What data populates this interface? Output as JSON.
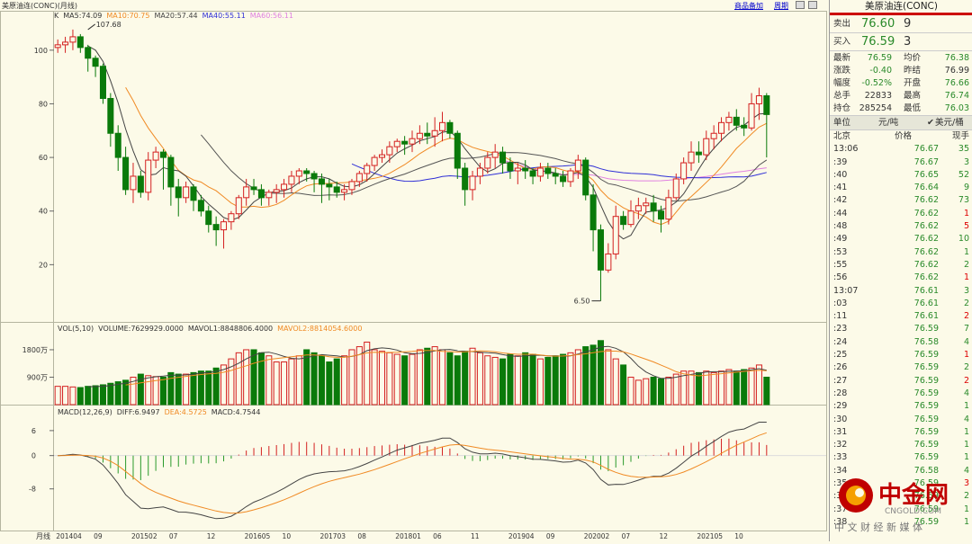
{
  "header": {
    "title": "美原油连(CONC)(月线)",
    "link_add": "商品备加",
    "link_period": "周期"
  },
  "legends": {
    "ma": [
      {
        "label": "K",
        "color": "#333333"
      },
      {
        "label": "MA5:74.09",
        "color": "#333333"
      },
      {
        "label": "MA10:70.75",
        "color": "#f08a24"
      },
      {
        "label": "MA20:57.44",
        "color": "#444444"
      },
      {
        "label": "MA40:55.11",
        "color": "#2f2fd6"
      },
      {
        "label": "MA60:56.11",
        "color": "#e080e0"
      }
    ],
    "vol": [
      {
        "label": "VOL(5,10)",
        "color": "#333333"
      },
      {
        "label": "VOLUME:7629929.0000",
        "color": "#333333"
      },
      {
        "label": "MAVOL1:8848806.4000",
        "color": "#333333"
      },
      {
        "label": "MAVOL2:8814054.6000",
        "color": "#f08a24"
      }
    ],
    "macd": [
      {
        "label": "MACD(12,26,9)",
        "color": "#333333"
      },
      {
        "label": "DIFF:6.9497",
        "color": "#333333"
      },
      {
        "label": "DEA:4.5725",
        "color": "#f08a24"
      },
      {
        "label": "MACD:4.7544",
        "color": "#333333"
      }
    ]
  },
  "chart_data": {
    "type": "candlestick",
    "title": "美原油连(CONC)(月线)",
    "price_ylim": [
      0,
      110
    ],
    "price_ticks": [
      20,
      40,
      60,
      80,
      100
    ],
    "volume_ticks": [
      "900万",
      "1800万"
    ],
    "volume_max": 2300,
    "macd_ticks": [
      6,
      0,
      -8
    ],
    "macd_ylim": [
      -18,
      9
    ],
    "x_label": "月线",
    "x_ticks": [
      {
        "label": "201404",
        "i": 0
      },
      {
        "label": "09",
        "i": 5
      },
      {
        "label": "201502",
        "i": 10
      },
      {
        "label": "07",
        "i": 15
      },
      {
        "label": "12",
        "i": 20
      },
      {
        "label": "201605",
        "i": 25
      },
      {
        "label": "10",
        "i": 30
      },
      {
        "label": "201703",
        "i": 35
      },
      {
        "label": "08",
        "i": 40
      },
      {
        "label": "201801",
        "i": 45
      },
      {
        "label": "06",
        "i": 50
      },
      {
        "label": "11",
        "i": 55
      },
      {
        "label": "201904",
        "i": 60
      },
      {
        "label": "09",
        "i": 65
      },
      {
        "label": "202002",
        "i": 70
      },
      {
        "label": "07",
        "i": 75
      },
      {
        "label": "12",
        "i": 80
      },
      {
        "label": "202105",
        "i": 85
      },
      {
        "label": "10",
        "i": 90
      }
    ],
    "annotations": [
      {
        "text": "107.68",
        "i": 4,
        "value": 107.68
      },
      {
        "text": "6.50",
        "i": 72,
        "value": 6.5
      }
    ],
    "ohlc": [
      [
        101,
        104,
        99,
        102
      ],
      [
        102,
        105,
        99,
        103
      ],
      [
        103,
        107.7,
        100,
        105
      ],
      [
        105,
        106,
        99,
        101
      ],
      [
        101,
        102,
        92,
        97
      ],
      [
        97,
        98,
        90,
        94
      ],
      [
        94,
        95,
        80,
        82
      ],
      [
        82,
        84,
        64,
        69
      ],
      [
        69,
        72,
        55,
        60
      ],
      [
        60,
        64,
        46,
        48
      ],
      [
        48,
        58,
        43,
        53
      ],
      [
        53,
        55,
        45,
        47
      ],
      [
        47,
        62,
        44,
        59
      ],
      [
        59,
        64,
        56,
        62
      ],
      [
        62,
        63,
        48,
        60
      ],
      [
        60,
        61,
        42,
        49
      ],
      [
        49,
        52,
        38,
        45
      ],
      [
        45,
        51,
        43,
        49
      ],
      [
        49,
        50,
        40,
        44
      ],
      [
        44,
        46,
        38,
        40
      ],
      [
        40,
        42,
        32,
        35
      ],
      [
        35,
        38,
        27,
        33
      ],
      [
        33,
        37,
        26,
        36
      ],
      [
        36,
        40,
        33,
        39
      ],
      [
        39,
        46,
        37,
        45
      ],
      [
        45,
        52,
        42,
        49
      ],
      [
        49,
        52,
        46,
        48
      ],
      [
        48,
        50,
        42,
        45
      ],
      [
        45,
        48,
        42,
        47
      ],
      [
        47,
        50,
        43,
        48
      ],
      [
        48,
        52,
        45,
        50
      ],
      [
        50,
        55,
        47,
        53
      ],
      [
        53,
        56,
        50,
        55
      ],
      [
        55,
        56,
        51,
        54
      ],
      [
        54,
        55,
        47,
        52
      ],
      [
        52,
        54,
        43,
        50
      ],
      [
        50,
        52,
        44,
        49
      ],
      [
        49,
        51,
        45,
        47
      ],
      [
        47,
        50,
        44,
        48
      ],
      [
        48,
        52,
        46,
        51
      ],
      [
        51,
        55,
        49,
        54
      ],
      [
        54,
        58,
        51,
        57
      ],
      [
        57,
        61,
        55,
        60
      ],
      [
        60,
        63,
        58,
        61
      ],
      [
        61,
        66,
        58,
        64
      ],
      [
        64,
        67,
        62,
        66
      ],
      [
        66,
        68,
        61,
        65
      ],
      [
        65,
        70,
        62,
        67
      ],
      [
        67,
        72,
        65,
        69
      ],
      [
        69,
        73,
        65,
        68
      ],
      [
        68,
        75,
        64,
        70
      ],
      [
        70,
        77,
        66,
        73
      ],
      [
        73,
        74,
        67,
        69
      ],
      [
        69,
        70,
        52,
        56
      ],
      [
        56,
        58,
        42,
        48
      ],
      [
        48,
        55,
        44,
        53
      ],
      [
        53,
        58,
        50,
        56
      ],
      [
        56,
        62,
        54,
        60
      ],
      [
        60,
        65,
        56,
        62
      ],
      [
        62,
        64,
        54,
        58
      ],
      [
        58,
        60,
        52,
        55
      ],
      [
        55,
        58,
        50,
        56
      ],
      [
        56,
        59,
        52,
        55
      ],
      [
        55,
        56,
        50,
        53
      ],
      [
        53,
        58,
        51,
        56
      ],
      [
        56,
        58,
        52,
        54
      ],
      [
        54,
        56,
        50,
        53
      ],
      [
        53,
        55,
        49,
        51
      ],
      [
        51,
        56,
        49,
        55
      ],
      [
        55,
        61,
        52,
        59
      ],
      [
        59,
        60,
        44,
        46
      ],
      [
        46,
        50,
        25,
        33
      ],
      [
        33,
        35,
        6.5,
        18
      ],
      [
        18,
        28,
        17,
        24
      ],
      [
        24,
        42,
        22,
        38
      ],
      [
        38,
        40,
        33,
        35
      ],
      [
        35,
        44,
        34,
        40
      ],
      [
        40,
        45,
        37,
        42
      ],
      [
        42,
        45,
        39,
        43
      ],
      [
        43,
        46,
        36,
        40
      ],
      [
        40,
        42,
        32,
        37
      ],
      [
        37,
        48,
        35,
        45
      ],
      [
        45,
        54,
        44,
        52
      ],
      [
        52,
        60,
        50,
        58
      ],
      [
        58,
        66,
        55,
        62
      ],
      [
        62,
        66,
        58,
        61
      ],
      [
        61,
        70,
        59,
        67
      ],
      [
        67,
        72,
        63,
        69
      ],
      [
        69,
        75,
        66,
        73
      ],
      [
        73,
        77,
        70,
        75
      ],
      [
        75,
        78,
        70,
        72
      ],
      [
        72,
        75,
        68,
        71
      ],
      [
        71,
        84,
        70,
        80
      ],
      [
        80,
        86,
        74,
        83
      ],
      [
        83,
        84,
        60,
        76
      ]
    ],
    "volume": [
      600,
      600,
      580,
      560,
      600,
      620,
      650,
      700,
      750,
      800,
      900,
      1000,
      950,
      920,
      900,
      1050,
      1000,
      1000,
      1050,
      1100,
      1100,
      1200,
      1300,
      1500,
      1700,
      1800,
      1800,
      1700,
      1600,
      1400,
      1400,
      1500,
      1600,
      1800,
      1700,
      1600,
      1400,
      1500,
      1600,
      1800,
      1900,
      2050,
      1800,
      1750,
      1700,
      1650,
      1600,
      1650,
      1800,
      1850,
      1900,
      1800,
      1700,
      1600,
      1750,
      1850,
      1700,
      1600,
      1550,
      1500,
      1650,
      1600,
      1700,
      1650,
      1500,
      1550,
      1600,
      1650,
      1700,
      1800,
      1900,
      1950,
      2100,
      1800,
      1500,
      1300,
      900,
      800,
      850,
      900,
      850,
      900,
      1000,
      1100,
      1100,
      1050,
      1100,
      1050,
      1100,
      1150,
      1100,
      1150,
      1200,
      1300,
      900
    ],
    "ma_series_visible": [
      "MA5",
      "MA10",
      "MA20",
      "MA40",
      "MA60"
    ]
  },
  "panel": {
    "title": "美原油连(CONC)",
    "sell": {
      "label": "卖出",
      "price": "76.60",
      "vol": "9"
    },
    "buy": {
      "label": "买入",
      "price": "76.59",
      "vol": "3"
    },
    "stats": [
      {
        "l1": "最新",
        "v1": "76.59",
        "c1": "green",
        "l2": "均价",
        "v2": "76.38",
        "c2": "green"
      },
      {
        "l1": "涨跌",
        "v1": "-0.40",
        "c1": "green",
        "l2": "昨结",
        "v2": "76.99",
        "c2": "black"
      },
      {
        "l1": "幅度",
        "v1": "-0.52%",
        "c1": "green",
        "l2": "开盘",
        "v2": "76.66",
        "c2": "green"
      },
      {
        "l1": "总手",
        "v1": "22833",
        "c1": "black",
        "l2": "最高",
        "v2": "76.74",
        "c2": "green"
      },
      {
        "l1": "持仓",
        "v1": "285254",
        "c1": "black",
        "l2": "最低",
        "v2": "76.03",
        "c2": "green"
      }
    ],
    "unit_label": "单位",
    "unit_value": "元/吨",
    "unit_alt": "美元/桶",
    "ticks_header": {
      "time": "北京",
      "price": "价格",
      "qty": "现手"
    },
    "ticks": [
      {
        "t": "13:06",
        "p": "76.67",
        "q": "35",
        "qc": "green"
      },
      {
        "t": ":39",
        "p": "76.67",
        "q": "3",
        "qc": "green"
      },
      {
        "t": ":40",
        "p": "76.65",
        "q": "52",
        "qc": "green"
      },
      {
        "t": ":41",
        "p": "76.64",
        "q": "9",
        "qc": "green"
      },
      {
        "t": ":42",
        "p": "76.62",
        "q": "73",
        "qc": "green"
      },
      {
        "t": ":44",
        "p": "76.62",
        "q": "1",
        "qc": "red"
      },
      {
        "t": ":48",
        "p": "76.62",
        "q": "5",
        "qc": "red"
      },
      {
        "t": ":49",
        "p": "76.62",
        "q": "10",
        "qc": "green"
      },
      {
        "t": ":53",
        "p": "76.62",
        "q": "1",
        "qc": "green"
      },
      {
        "t": ":55",
        "p": "76.62",
        "q": "2",
        "qc": "green"
      },
      {
        "t": ":56",
        "p": "76.62",
        "q": "1",
        "qc": "red"
      },
      {
        "t": "13:07",
        "p": "76.61",
        "q": "3",
        "qc": "green"
      },
      {
        "t": ":03",
        "p": "76.61",
        "q": "2",
        "qc": "green"
      },
      {
        "t": ":11",
        "p": "76.61",
        "q": "2",
        "qc": "red"
      },
      {
        "t": ":23",
        "p": "76.59",
        "q": "7",
        "qc": "green"
      },
      {
        "t": ":24",
        "p": "76.58",
        "q": "4",
        "qc": "green"
      },
      {
        "t": ":25",
        "p": "76.59",
        "q": "1",
        "qc": "red"
      },
      {
        "t": ":26",
        "p": "76.59",
        "q": "2",
        "qc": "green"
      },
      {
        "t": ":27",
        "p": "76.59",
        "q": "2",
        "qc": "red"
      },
      {
        "t": ":28",
        "p": "76.59",
        "q": "4",
        "qc": "green"
      },
      {
        "t": ":29",
        "p": "76.59",
        "q": "1",
        "qc": "green"
      },
      {
        "t": ":30",
        "p": "76.59",
        "q": "4",
        "qc": "green"
      },
      {
        "t": ":31",
        "p": "76.59",
        "q": "1",
        "qc": "green"
      },
      {
        "t": ":32",
        "p": "76.59",
        "q": "1",
        "qc": "green"
      },
      {
        "t": ":33",
        "p": "76.59",
        "q": "1",
        "qc": "green"
      },
      {
        "t": ":34",
        "p": "76.58",
        "q": "4",
        "qc": "green"
      },
      {
        "t": ":35",
        "p": "76.59",
        "q": "3",
        "qc": "red"
      },
      {
        "t": ":36",
        "p": "76.59",
        "q": "2",
        "qc": "green"
      },
      {
        "t": ":37",
        "p": "76.59",
        "q": "1",
        "qc": "green"
      },
      {
        "t": ":38",
        "p": "76.59",
        "q": "1",
        "qc": "green"
      }
    ]
  },
  "watermark": {
    "brand": "中金网",
    "site": "CNGOLD.COM",
    "slogan": "中 文 财 经 新 媒 体"
  },
  "colors": {
    "up": "#d42020",
    "down": "#0a7a0a",
    "ma5": "#444444",
    "ma10": "#f08a24",
    "ma20": "#555555",
    "ma40": "#2f2fd6",
    "ma60": "#e080e0",
    "brand": "#c00000"
  }
}
